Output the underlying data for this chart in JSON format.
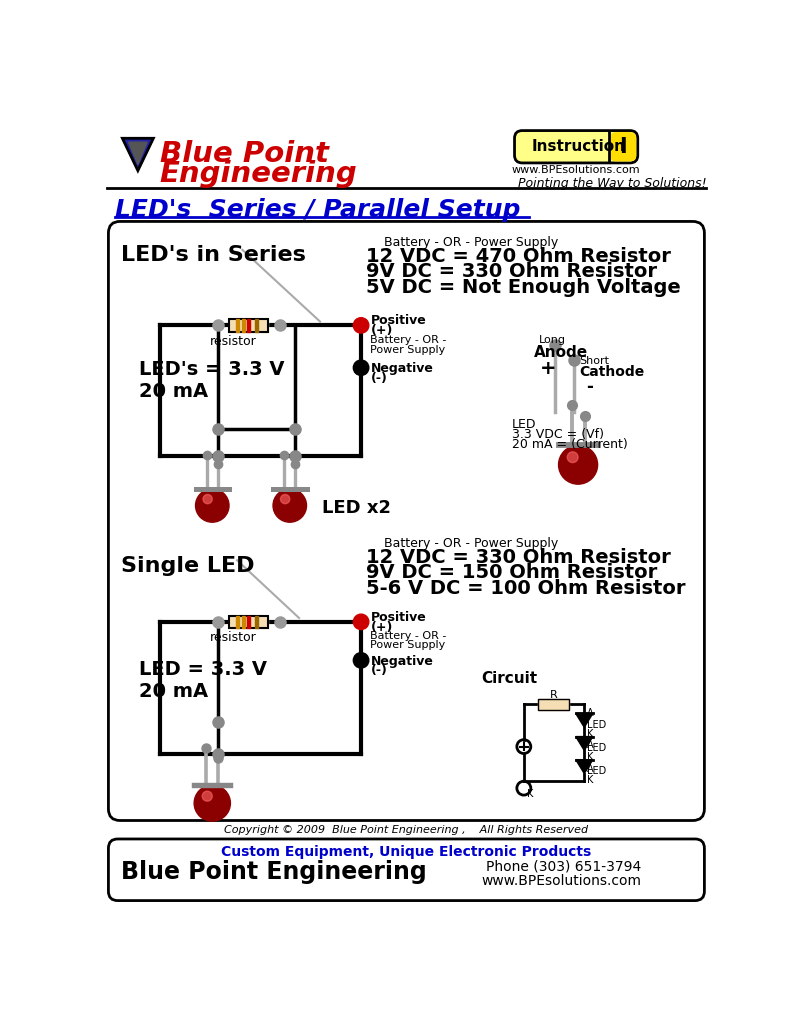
{
  "fig_width": 7.93,
  "fig_height": 10.24,
  "bg_color": "#ffffff",
  "title_text": "LED's  Series / Parallel Setup",
  "company_color": "#cc0000",
  "tagline": "Pointing the Way to Solutions!",
  "instruction_label": "Instruction",
  "instruction_number": "I",
  "footer_tagline": "Custom Equipment, Unique Electronic Products",
  "footer_company": "Blue Point Engineering",
  "footer_phone": "Phone (303) 651-3794",
  "footer_web": "www.BPEsolutions.com",
  "copyright": "Copyright © 2009  Blue Point Engineering ,    All Rights Reserved",
  "series_label": "LED's in Series",
  "series_values": "LED's = 3.3 V\n20 mA",
  "series_title1": "Battery - OR - Power Supply",
  "series_line1": "12 VDC = 470 Ohm Resistor",
  "series_line2": "9V DC = 330 Ohm Resistor",
  "series_line3": "5V DC = Not Enough Voltage",
  "single_label": "Single LED",
  "single_values": "LED = 3.3 V\n20 mA",
  "single_title1": "Battery - OR - Power Supply",
  "single_line1": "12 VDC = 330 Ohm Resistor",
  "single_line2": "9V DC = 150 Ohm Resistor",
  "single_line3": "5-6 V DC = 100 Ohm Resistor",
  "led_label": "LED\n3.3 VDC = (Vf)\n20 mA = (Current)",
  "positive_label": "Positive\n(+)",
  "negative_label": "Negative\n(-)",
  "battery_label": "Battery - OR -\nPower Supply",
  "resistor_label": "resistor",
  "led_x2_label": "LED x2",
  "circuit_label": "Circuit"
}
